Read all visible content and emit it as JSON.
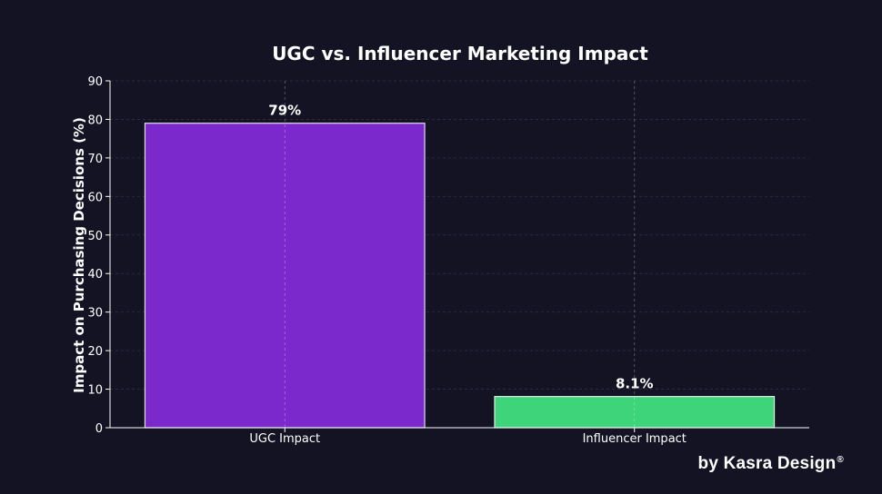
{
  "chart_data": {
    "type": "bar",
    "title": "UGC vs. Influencer Marketing Impact",
    "xlabel": "",
    "ylabel": "Impact on Purchasing Decisions (%)",
    "categories": [
      "UGC Impact",
      "Influencer Impact"
    ],
    "values": [
      79,
      8.1
    ],
    "data_labels": [
      "79%",
      "8.1%"
    ],
    "colors": [
      "#7b28cc",
      "#3dd47a"
    ],
    "ylim": [
      0,
      90
    ],
    "yticks": [
      0,
      10,
      20,
      30,
      40,
      50,
      60,
      70,
      80,
      90
    ],
    "grid": true,
    "legend": "none"
  },
  "watermark": {
    "text": "by Kasra Design",
    "mark": "®"
  }
}
